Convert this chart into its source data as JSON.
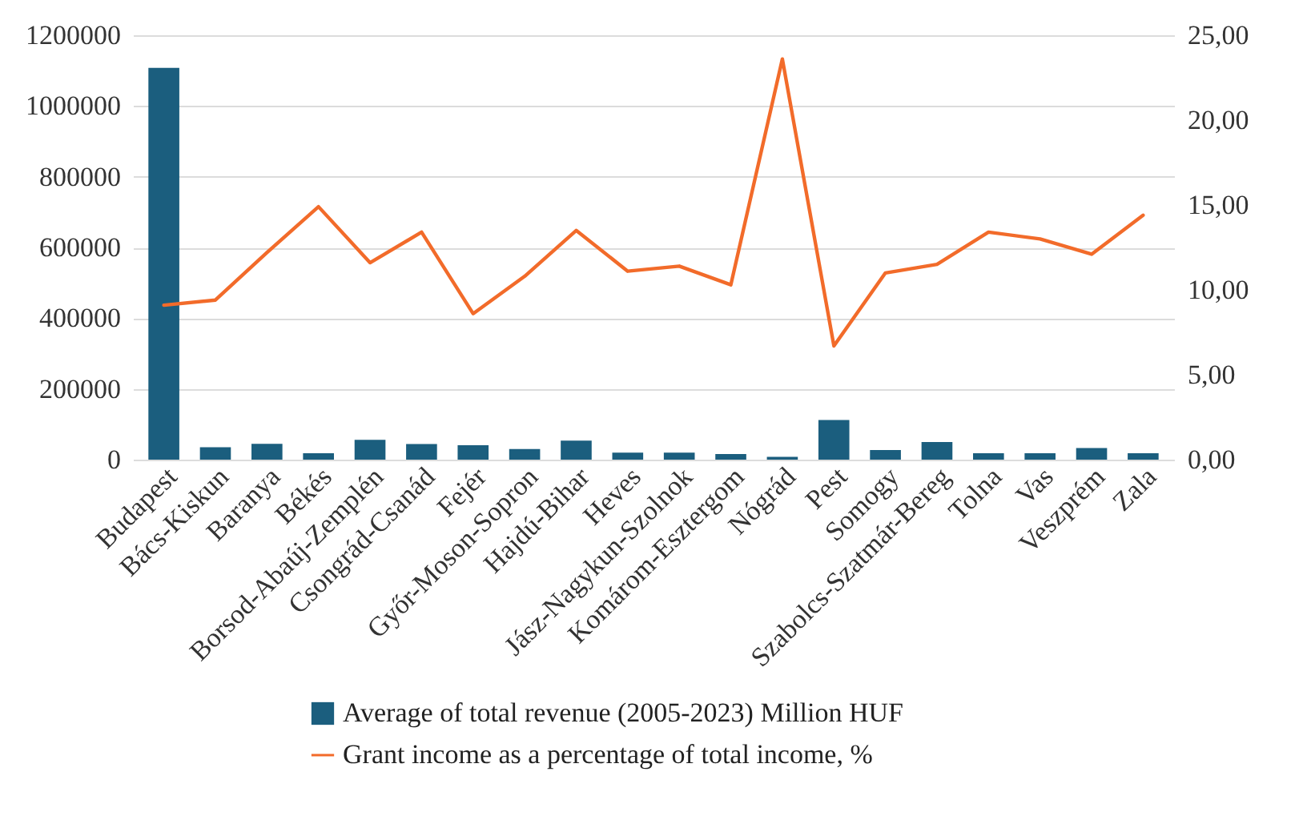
{
  "chart_data": {
    "type": "bar",
    "categories": [
      "Budapest",
      "Bács-Kiskun",
      "Baranya",
      "Békés",
      "Borsod-Abaúj-Zemplén",
      "Csongrád-Csanád",
      "Fejér",
      "Győr-Moson-Sopron",
      "Hajdú-Bihar",
      "Heves",
      "Jász-Nagykun-Szolnok",
      "Komárom-Esztergom",
      "Nógrád",
      "Pest",
      "Somogy",
      "Szabolcs-Szatmár-Bereg",
      "Tolna",
      "Vas",
      "Veszprém",
      "Zala"
    ],
    "series": [
      {
        "name": "Average of total revenue (2005-2023) Million HUF",
        "color": "#1b5e7e",
        "values": [
          1108000,
          35000,
          45000,
          18000,
          56000,
          44000,
          41000,
          30000,
          54000,
          20000,
          20000,
          16000,
          8000,
          112000,
          27000,
          50000,
          18000,
          18000,
          33000,
          18000
        ]
      },
      {
        "name": "Grant income as a percentage of total income, %",
        "type": "line",
        "axis": "y2",
        "color": "#f26b2a",
        "values": [
          9.1,
          9.4,
          12.2,
          14.9,
          11.6,
          13.4,
          8.6,
          10.8,
          13.5,
          11.1,
          11.4,
          10.3,
          23.6,
          6.7,
          11.0,
          11.5,
          13.4,
          13.0,
          12.1,
          14.4
        ]
      }
    ],
    "ylim": [
      0,
      1200000
    ],
    "yticks": [
      0,
      200000,
      400000,
      600000,
      800000,
      1000000,
      1200000
    ],
    "y2lim": [
      0,
      25
    ],
    "y2ticks": [
      {
        "value": 0,
        "label": "0,00"
      },
      {
        "value": 5,
        "label": "5,00"
      },
      {
        "value": 10,
        "label": "10,00"
      },
      {
        "value": 15,
        "label": "15,00"
      },
      {
        "value": 20,
        "label": "20,00"
      },
      {
        "value": 25,
        "label": "25,00"
      }
    ],
    "grid": "y",
    "legend": "bottom"
  }
}
